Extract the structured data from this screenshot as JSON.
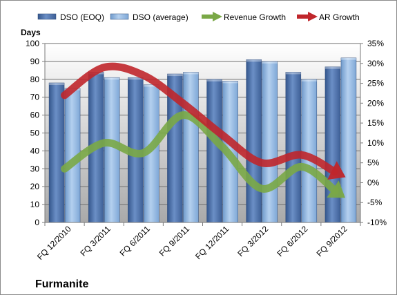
{
  "chart_data": {
    "type": "bar",
    "brand": "Furmanite",
    "ylabel": "Days",
    "categories": [
      "FQ 12/2010",
      "FQ 3/2011",
      "FQ 6/2011",
      "FQ 9/2011",
      "FQ 12/2011",
      "FQ 3/2012",
      "FQ 6/2012",
      "FQ 9/2012"
    ],
    "ylim": [
      0,
      100
    ],
    "y_ticks": [
      "0",
      "10",
      "20",
      "30",
      "40",
      "50",
      "60",
      "70",
      "80",
      "90",
      "100"
    ],
    "y2lim": [
      -10,
      35
    ],
    "y2_ticks": [
      "-10%",
      "-5%",
      "0%",
      "5%",
      "10%",
      "15%",
      "20%",
      "25%",
      "30%",
      "35%"
    ],
    "grid": true,
    "legend_position": "top",
    "series": [
      {
        "name": "DSO (EOQ)",
        "kind": "bar",
        "color": "#4a6ea8",
        "values": [
          78,
          84,
          81,
          83,
          80,
          91,
          84,
          87
        ]
      },
      {
        "name": "DSO (average)",
        "kind": "bar",
        "color": "#8eb4de",
        "values": [
          75,
          81,
          77,
          84,
          79,
          90,
          80,
          92
        ]
      },
      {
        "name": "Revenue Growth",
        "kind": "arrow-line",
        "axis": "right",
        "color": "#7aa846",
        "values": [
          3.5,
          10,
          7.5,
          17,
          9,
          -1.5,
          4,
          -3
        ]
      },
      {
        "name": "AR Growth",
        "kind": "arrow-line",
        "axis": "right",
        "color": "#c0262b",
        "values": [
          22,
          29,
          27,
          20,
          12,
          5,
          7,
          2
        ]
      }
    ]
  }
}
